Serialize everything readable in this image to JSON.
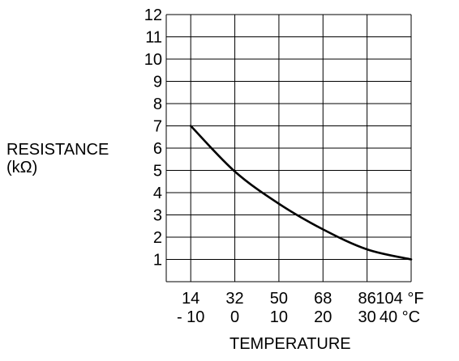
{
  "chart_data": {
    "type": "line",
    "title": "",
    "ylabel_line1": "RESISTANCE",
    "ylabel_line2": "(kΩ)",
    "xlabel": "TEMPERATURE",
    "ylim": [
      0,
      12
    ],
    "y_ticks": [
      "1",
      "2",
      "3",
      "4",
      "5",
      "6",
      "7",
      "8",
      "9",
      "10",
      "11",
      "12"
    ],
    "xlim_f": [
      4,
      104
    ],
    "x_ticks_f": [
      "14",
      "32",
      "50",
      "68",
      "86",
      "104 °F"
    ],
    "x_ticks_c": [
      "- 10",
      "0",
      "10",
      "20",
      "30",
      "40 °C"
    ],
    "grid": true,
    "series": [
      {
        "x_f": [
          14,
          32,
          50,
          68,
          86,
          104
        ],
        "x_c": [
          -10,
          0,
          10,
          20,
          30,
          40
        ],
        "values": [
          7.0,
          4.95,
          3.5,
          2.35,
          1.45,
          1.0
        ]
      }
    ]
  }
}
